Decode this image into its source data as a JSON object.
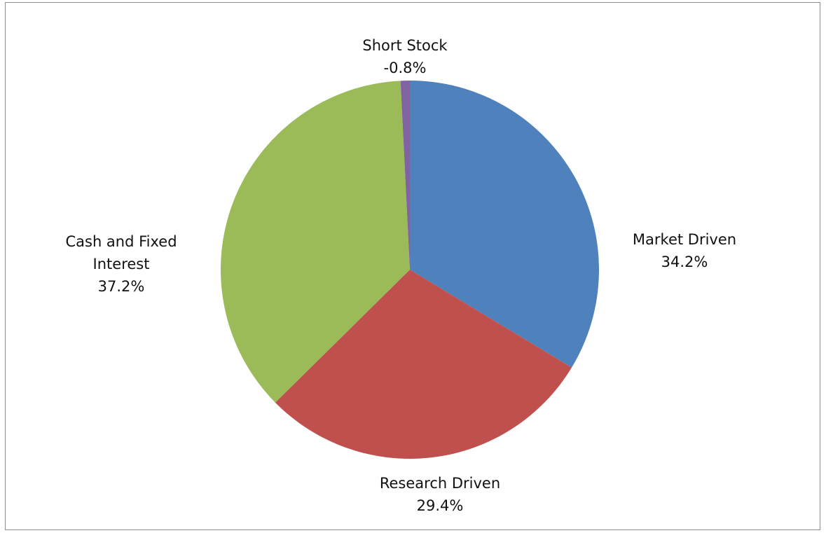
{
  "chart_data": {
    "type": "pie",
    "categories": [
      "Market Driven",
      "Research Driven",
      "Cash and Fixed Interest",
      "Short Stock"
    ],
    "values": [
      34.2,
      29.4,
      37.2,
      -0.8
    ],
    "value_labels": [
      "34.2%",
      "29.4%",
      "37.2%",
      "-0.8%"
    ],
    "colors": [
      "#4f81bd",
      "#c0504d",
      "#9bbb59",
      "#8064a2"
    ]
  }
}
